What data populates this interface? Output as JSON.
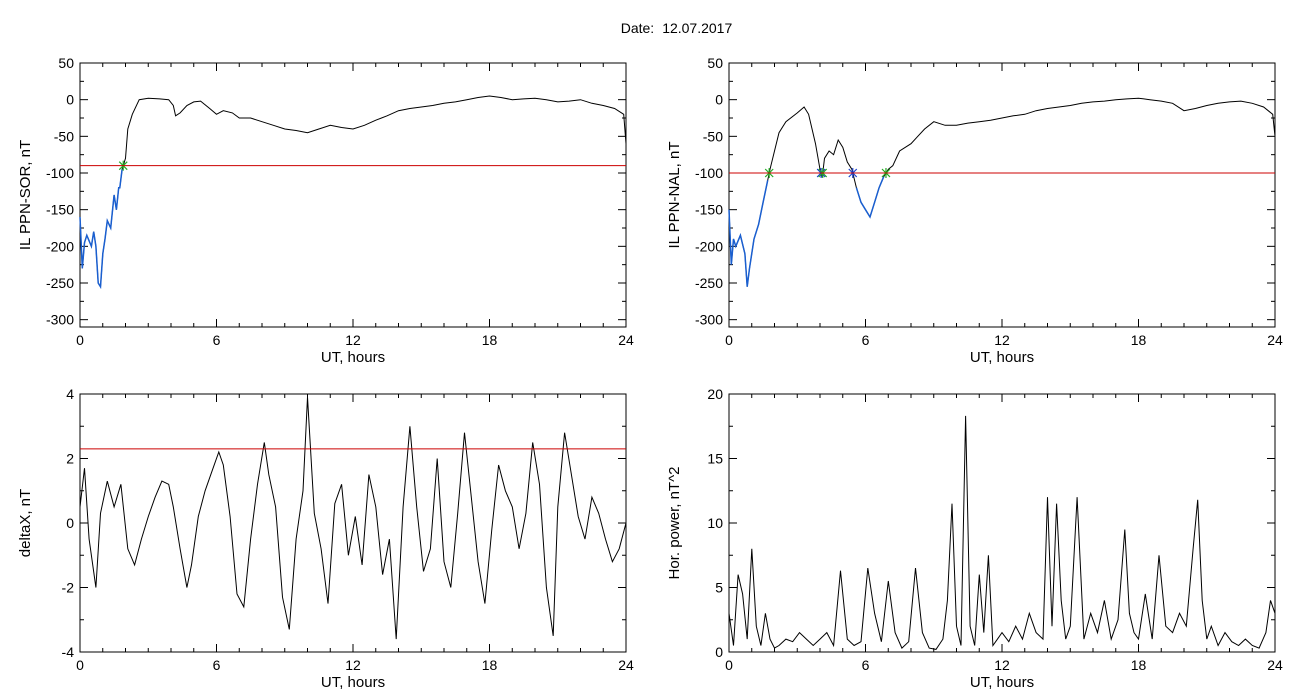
{
  "header": {
    "date_label": "Date:",
    "date_value": "12.07.2017"
  },
  "colors": {
    "trace": "#000000",
    "threshold": "#cc0000",
    "below": "#1a5fd0",
    "marker_green": "#22aa22",
    "marker_red": "#dd2222",
    "marker_blue": "#1a40cc"
  },
  "chart_data": [
    {
      "type": "line",
      "title": "",
      "xlabel": "UT, hours",
      "ylabel": "IL PPN-SOR, nT",
      "xlim": [
        0,
        24
      ],
      "ylim": [
        -310,
        50
      ],
      "xticks": [
        0,
        6,
        12,
        18,
        24
      ],
      "yticks": [
        50,
        0,
        -50,
        -100,
        -150,
        -200,
        -250,
        -300
      ],
      "threshold": -90,
      "series": [
        {
          "x": [
            0,
            0.1,
            0.2,
            0.3,
            0.5,
            0.6,
            0.7,
            0.8,
            0.9,
            1.0,
            1.1,
            1.2,
            1.35,
            1.5,
            1.6,
            1.7,
            1.75,
            1.85,
            2.0,
            2.1,
            2.3,
            2.6,
            3.0,
            3.5,
            3.9,
            4.1,
            4.2,
            4.4,
            4.7,
            5.0,
            5.3,
            5.7,
            6.0,
            6.3,
            6.7,
            7.0,
            7.5,
            8.0,
            8.5,
            9.0,
            9.5,
            10.0,
            10.5,
            11.0,
            11.5,
            12.0,
            12.5,
            13.0,
            13.5,
            14.0,
            14.5,
            15.0,
            15.5,
            16.0,
            16.5,
            17.0,
            17.5,
            18.0,
            18.5,
            19.0,
            19.5,
            20.0,
            20.5,
            21.0,
            21.5,
            22.0,
            22.5,
            23.0,
            23.5,
            23.9,
            24.0
          ],
          "y": [
            -160,
            -230,
            -195,
            -185,
            -200,
            -180,
            -200,
            -250,
            -255,
            -210,
            -190,
            -165,
            -175,
            -130,
            -150,
            -120,
            -120,
            -95,
            -80,
            -40,
            -20,
            0,
            2,
            1,
            0,
            -8,
            -22,
            -18,
            -8,
            -3,
            -2,
            -12,
            -20,
            -15,
            -18,
            -25,
            -25,
            -30,
            -35,
            -40,
            -42,
            -45,
            -40,
            -35,
            -38,
            -40,
            -35,
            -28,
            -22,
            -15,
            -12,
            -10,
            -8,
            -5,
            -3,
            0,
            3,
            5,
            3,
            0,
            1,
            2,
            0,
            -3,
            -2,
            0,
            -5,
            -8,
            -12,
            -20,
            -60
          ]
        }
      ]
    },
    {
      "type": "line",
      "title": "",
      "xlabel": "UT, hours",
      "ylabel": "IL PPN-NAL, nT",
      "xlim": [
        0,
        24
      ],
      "ylim": [
        -310,
        50
      ],
      "xticks": [
        0,
        6,
        12,
        18,
        24
      ],
      "yticks": [
        50,
        0,
        -50,
        -100,
        -150,
        -200,
        -250,
        -300
      ],
      "threshold": -100,
      "series": [
        {
          "x": [
            0,
            0.1,
            0.2,
            0.3,
            0.5,
            0.7,
            0.8,
            0.9,
            1.1,
            1.3,
            1.5,
            1.7,
            1.8,
            2.0,
            2.2,
            2.5,
            3.0,
            3.3,
            3.5,
            3.8,
            4.0,
            4.1,
            4.2,
            4.4,
            4.6,
            4.8,
            5.0,
            5.2,
            5.4,
            5.6,
            5.8,
            6.0,
            6.2,
            6.4,
            6.6,
            6.8,
            7.0,
            7.2,
            7.5,
            8.0,
            8.3,
            8.6,
            9.0,
            9.5,
            10.0,
            10.5,
            11.0,
            11.5,
            12.0,
            12.5,
            13.0,
            13.5,
            14.0,
            14.5,
            15.0,
            15.5,
            16.0,
            16.5,
            17.0,
            17.5,
            18.0,
            18.5,
            19.0,
            19.5,
            20.0,
            20.5,
            21.0,
            21.5,
            22.0,
            22.5,
            23.0,
            23.5,
            23.9,
            24.0
          ],
          "y": [
            -150,
            -225,
            -190,
            -200,
            -185,
            -210,
            -255,
            -230,
            -190,
            -170,
            -140,
            -110,
            -95,
            -70,
            -45,
            -30,
            -18,
            -10,
            -20,
            -60,
            -95,
            -105,
            -80,
            -70,
            -75,
            -55,
            -65,
            -85,
            -95,
            -120,
            -140,
            -150,
            -160,
            -140,
            -120,
            -105,
            -95,
            -90,
            -70,
            -60,
            -50,
            -40,
            -30,
            -35,
            -35,
            -32,
            -30,
            -28,
            -25,
            -22,
            -20,
            -15,
            -12,
            -10,
            -8,
            -5,
            -3,
            -2,
            0,
            1,
            2,
            0,
            -2,
            -5,
            -15,
            -12,
            -8,
            -5,
            -3,
            -2,
            -5,
            -10,
            -20,
            -50
          ]
        }
      ]
    },
    {
      "type": "line",
      "title": "",
      "xlabel": "UT, hours",
      "ylabel": "deltaX, nT",
      "xlim": [
        0,
        24
      ],
      "ylim": [
        -4,
        4
      ],
      "xticks": [
        0,
        6,
        12,
        18,
        24
      ],
      "yticks": [
        4,
        2,
        0,
        -2,
        -4
      ],
      "threshold": 2.3,
      "series": [
        {
          "x": [
            0,
            0.2,
            0.4,
            0.7,
            0.9,
            1.2,
            1.5,
            1.8,
            2.1,
            2.4,
            2.7,
            3.0,
            3.3,
            3.6,
            3.9,
            4.1,
            4.4,
            4.7,
            4.9,
            5.2,
            5.5,
            5.8,
            6.1,
            6.3,
            6.6,
            6.9,
            7.2,
            7.5,
            7.8,
            8.1,
            8.3,
            8.6,
            8.9,
            9.2,
            9.5,
            9.8,
            10.0,
            10.3,
            10.6,
            10.9,
            11.2,
            11.5,
            11.8,
            12.1,
            12.4,
            12.7,
            13.0,
            13.3,
            13.6,
            13.9,
            14.2,
            14.5,
            14.8,
            15.1,
            15.4,
            15.7,
            16.0,
            16.3,
            16.6,
            16.9,
            17.2,
            17.5,
            17.8,
            18.1,
            18.4,
            18.7,
            19.0,
            19.3,
            19.6,
            19.9,
            20.2,
            20.5,
            20.8,
            21.0,
            21.3,
            21.6,
            21.9,
            22.2,
            22.5,
            22.8,
            23.1,
            23.4,
            23.7,
            24.0
          ],
          "y": [
            0.5,
            1.7,
            -0.5,
            -2.0,
            0.3,
            1.3,
            0.5,
            1.2,
            -0.8,
            -1.3,
            -0.5,
            0.2,
            0.8,
            1.3,
            1.2,
            0.5,
            -0.8,
            -2.0,
            -1.3,
            0.2,
            1.0,
            1.6,
            2.2,
            1.8,
            0.2,
            -2.2,
            -2.6,
            -0.5,
            1.2,
            2.5,
            1.5,
            0.5,
            -2.3,
            -3.3,
            -0.5,
            1.0,
            3.9,
            0.3,
            -0.8,
            -2.5,
            0.6,
            1.2,
            -1.0,
            0.2,
            -1.3,
            1.5,
            0.5,
            -1.6,
            -0.5,
            -3.6,
            0.5,
            3.0,
            0.5,
            -1.5,
            -0.8,
            2.0,
            -1.2,
            -2.0,
            0.3,
            2.8,
            0.8,
            -1.2,
            -2.5,
            -0.2,
            1.8,
            1.0,
            0.5,
            -0.8,
            0.3,
            2.5,
            1.2,
            -2.0,
            -3.5,
            0.5,
            2.8,
            1.5,
            0.2,
            -0.5,
            0.8,
            0.3,
            -0.5,
            -1.2,
            -0.8,
            0.0
          ]
        }
      ]
    },
    {
      "type": "line",
      "title": "",
      "xlabel": "UT, hours",
      "ylabel": "Hor. power, nT^2",
      "xlim": [
        0,
        24
      ],
      "ylim": [
        0,
        20
      ],
      "xticks": [
        0,
        6,
        12,
        18,
        24
      ],
      "yticks": [
        20,
        15,
        10,
        5,
        0
      ],
      "series": [
        {
          "x": [
            0,
            0.2,
            0.4,
            0.6,
            0.8,
            1.0,
            1.2,
            1.4,
            1.6,
            1.8,
            2.0,
            2.2,
            2.5,
            2.8,
            3.1,
            3.4,
            3.7,
            4.0,
            4.3,
            4.6,
            4.9,
            5.2,
            5.5,
            5.8,
            6.1,
            6.4,
            6.7,
            7.0,
            7.3,
            7.6,
            7.9,
            8.2,
            8.5,
            8.8,
            9.1,
            9.4,
            9.6,
            9.8,
            10.0,
            10.2,
            10.4,
            10.6,
            10.8,
            11.0,
            11.2,
            11.4,
            11.6,
            11.8,
            12.0,
            12.3,
            12.6,
            12.9,
            13.2,
            13.5,
            13.8,
            14.0,
            14.2,
            14.4,
            14.6,
            14.8,
            15.0,
            15.3,
            15.6,
            15.9,
            16.2,
            16.5,
            16.8,
            17.1,
            17.4,
            17.6,
            17.8,
            18.0,
            18.3,
            18.6,
            18.9,
            19.2,
            19.5,
            19.8,
            20.1,
            20.4,
            20.6,
            20.8,
            21.0,
            21.2,
            21.5,
            21.8,
            22.1,
            22.4,
            22.7,
            23.0,
            23.3,
            23.6,
            23.8,
            24.0
          ],
          "y": [
            3.0,
            0.5,
            6.0,
            4.5,
            1.0,
            8.0,
            2.0,
            0.5,
            3.0,
            1.0,
            0.3,
            0.5,
            1.0,
            0.8,
            1.5,
            1.0,
            0.5,
            1.0,
            1.5,
            0.5,
            6.3,
            1.0,
            0.5,
            0.8,
            6.5,
            3.0,
            0.8,
            5.5,
            1.5,
            0.3,
            0.8,
            6.5,
            1.5,
            0.3,
            0.2,
            1.0,
            4.0,
            11.5,
            2.0,
            0.5,
            18.3,
            2.0,
            0.5,
            6.0,
            1.5,
            7.5,
            0.5,
            1.0,
            1.5,
            0.8,
            2.0,
            1.0,
            3.0,
            1.5,
            1.0,
            12.0,
            2.0,
            11.5,
            4.0,
            1.0,
            2.0,
            12.0,
            1.0,
            3.0,
            1.5,
            4.0,
            1.0,
            2.5,
            9.5,
            3.0,
            1.5,
            1.0,
            4.5,
            1.0,
            7.5,
            2.0,
            1.5,
            3.0,
            2.0,
            8.0,
            11.8,
            4.0,
            1.0,
            2.0,
            0.5,
            1.5,
            0.8,
            0.5,
            1.0,
            0.5,
            0.3,
            1.5,
            4.0,
            3.0
          ]
        }
      ]
    }
  ]
}
